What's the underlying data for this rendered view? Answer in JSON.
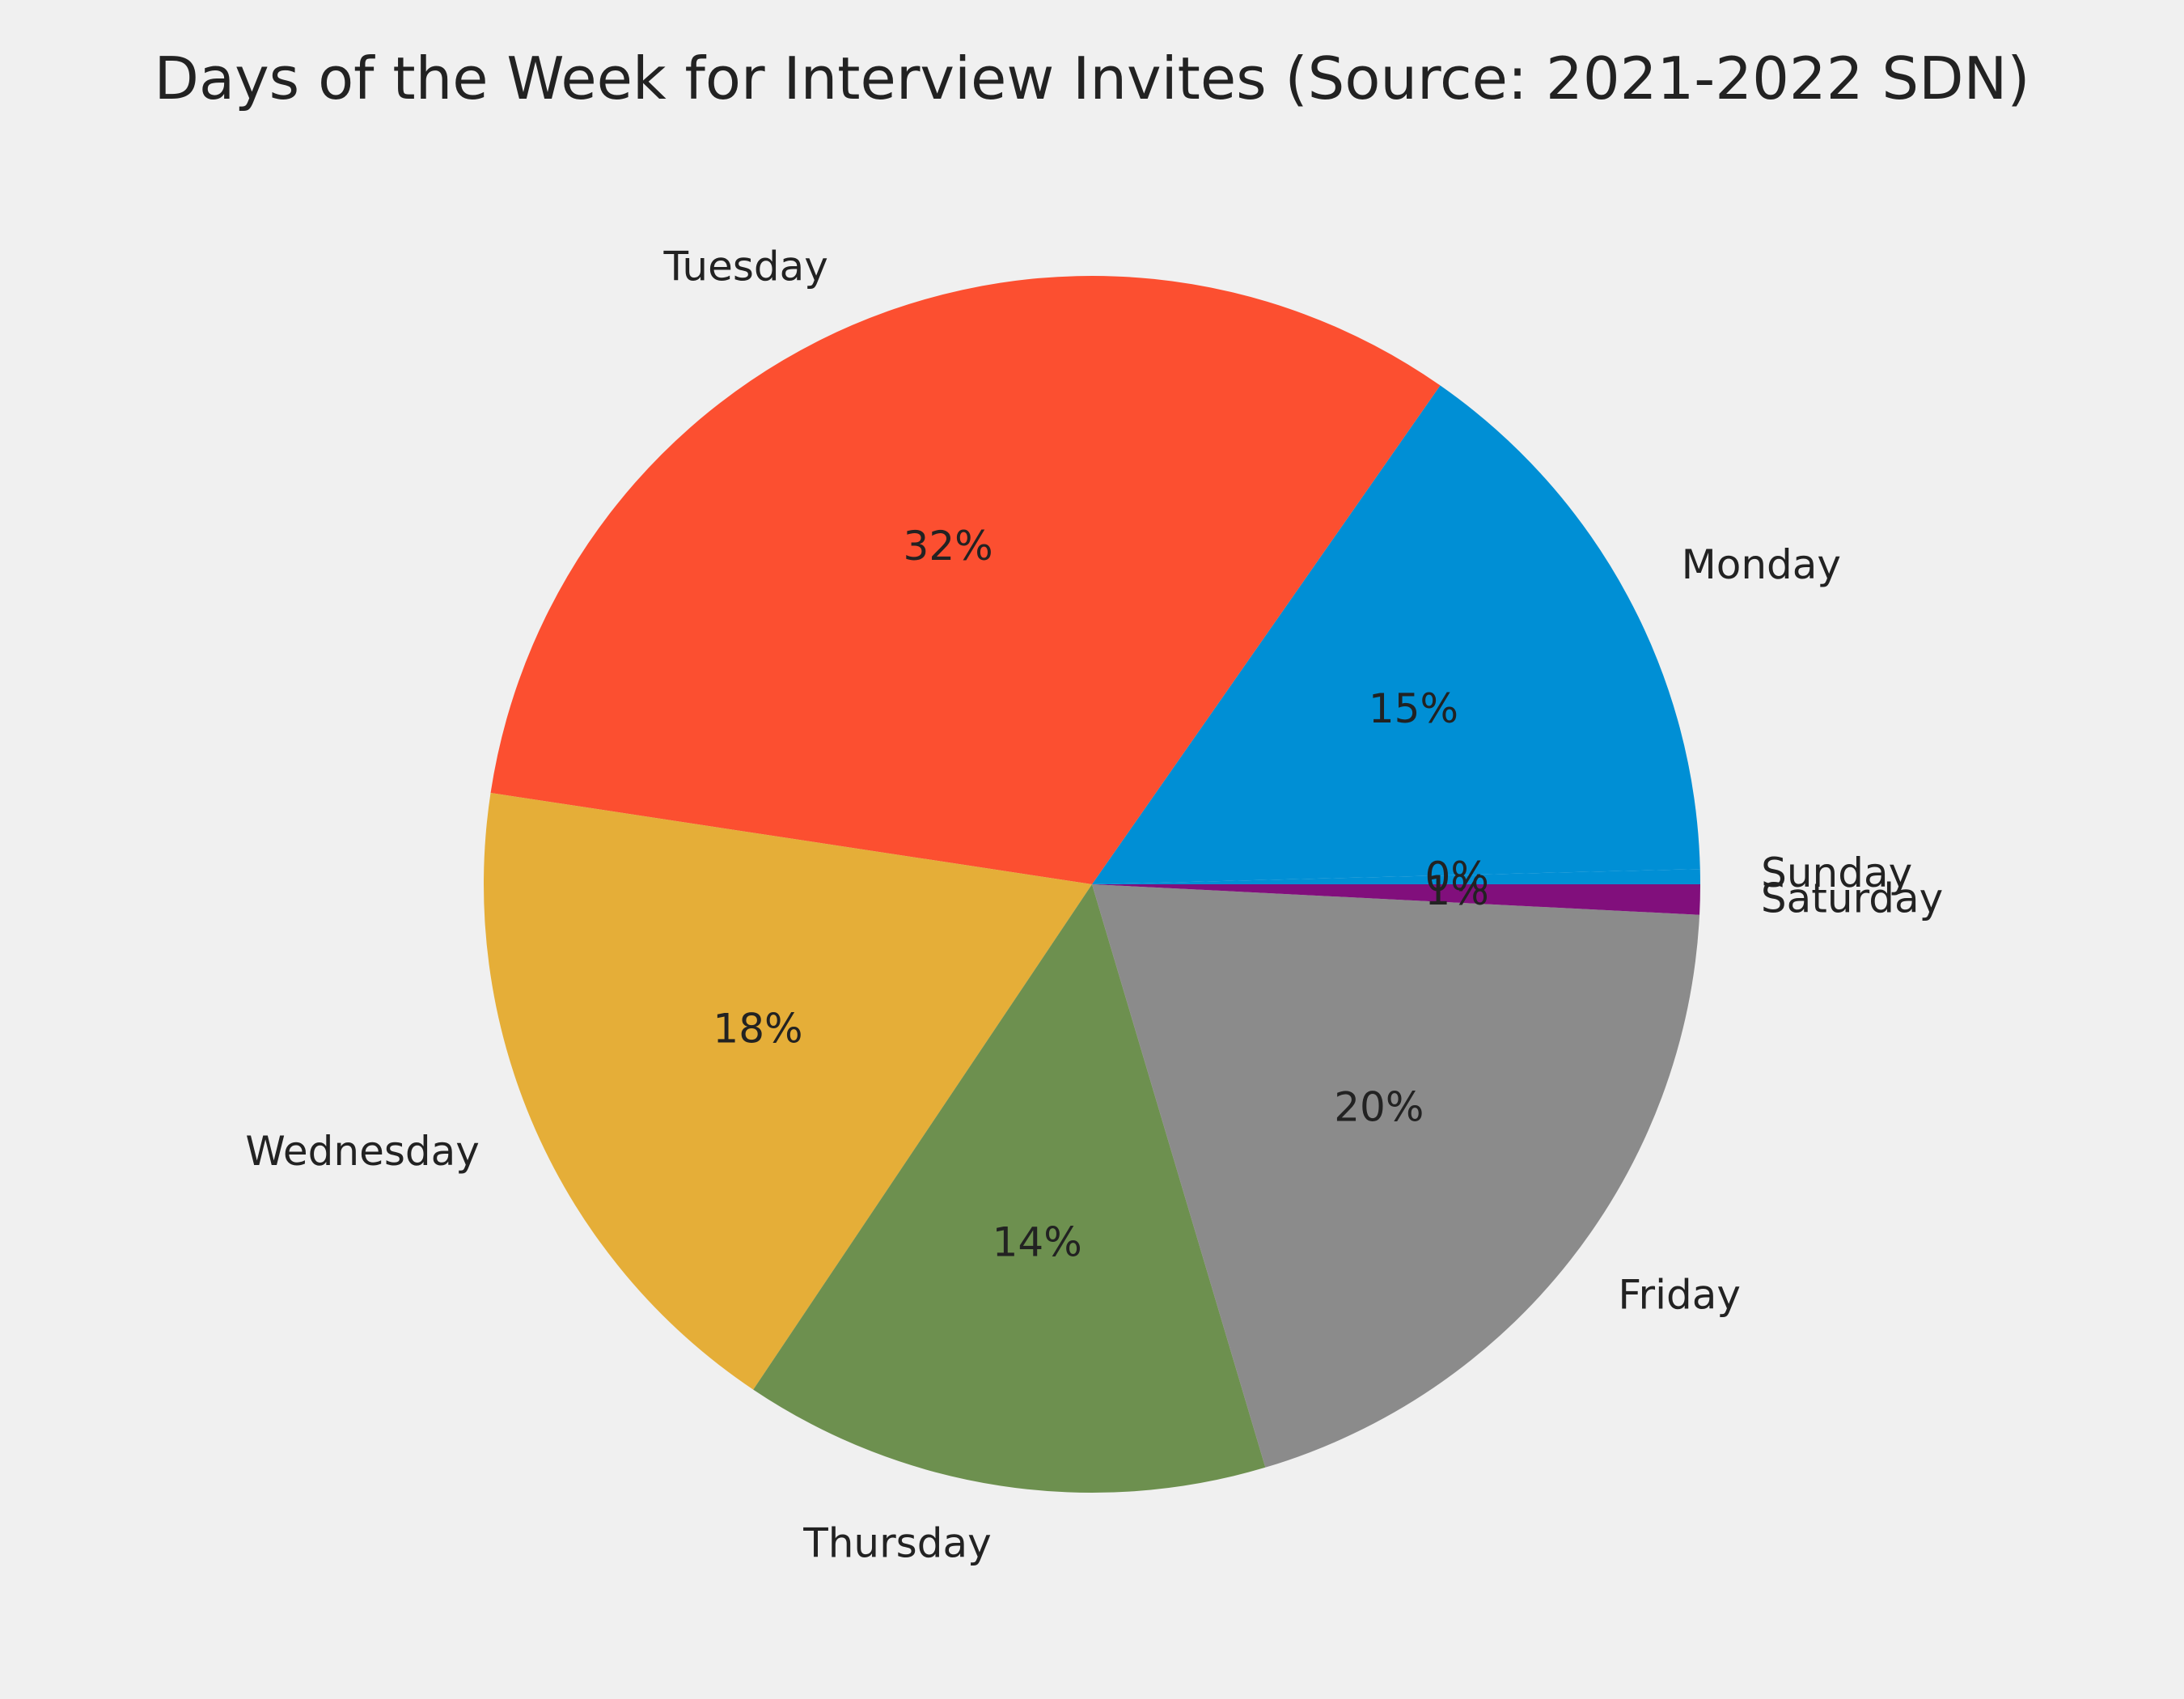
{
  "chart_data": {
    "type": "pie",
    "title": "Days of the Week for Interview Invites (Source: 2021-2022 SDN)",
    "start_angle_deg": 0,
    "direction": "counterclockwise",
    "slices": [
      {
        "label": "Sunday",
        "value": 0.4,
        "pct_label": "0%",
        "color": "#008fd5"
      },
      {
        "label": "Monday",
        "value": 14.9,
        "pct_label": "15%",
        "color": "#008fd5"
      },
      {
        "label": "Tuesday",
        "value": 32.3,
        "pct_label": "32%",
        "color": "#fc4f30"
      },
      {
        "label": "Wednesday",
        "value": 18.0,
        "pct_label": "18%",
        "color": "#e5ae38"
      },
      {
        "label": "Thursday",
        "value": 14.0,
        "pct_label": "14%",
        "color": "#6d904f"
      },
      {
        "label": "Friday",
        "value": 19.6,
        "pct_label": "20%",
        "color": "#8b8b8b"
      },
      {
        "label": "Saturday",
        "value": 0.8,
        "pct_label": "1%",
        "color": "#810f7c"
      }
    ]
  }
}
